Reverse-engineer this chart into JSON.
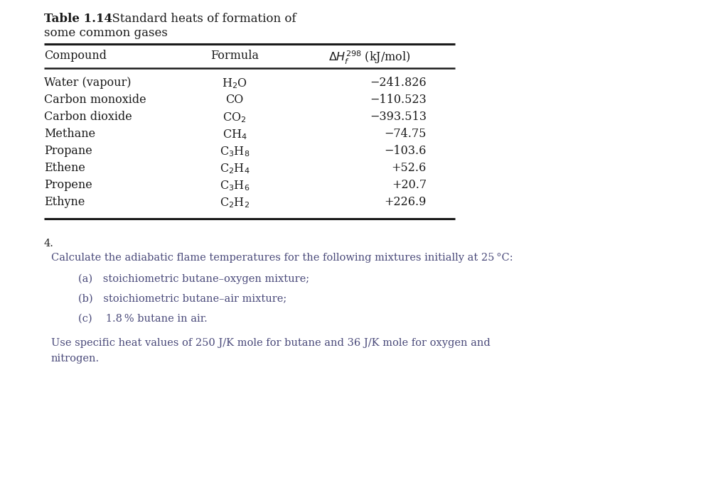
{
  "table_title_bold": "Table 1.14",
  "table_title_rest": "  Standard heats of formation of",
  "table_title_line2": "some common gases",
  "compounds": [
    "Water (vapour)",
    "Carbon monoxide",
    "Carbon dioxide",
    "Methane",
    "Propane",
    "Ethene",
    "Propene",
    "Ethyne"
  ],
  "formulas_latex": [
    "H$_2$O",
    "CO",
    "CO$_2$",
    "CH$_4$",
    "C$_3$H$_8$",
    "C$_2$H$_4$",
    "C$_3$H$_6$",
    "C$_2$H$_2$"
  ],
  "values": [
    "−241.826",
    "−110.523",
    "−393.513",
    "−74.75",
    "−103.6",
    "+52.6",
    "+20.7",
    "+226.9"
  ],
  "q_number": "4.",
  "q_line1": "Calculate the adiabatic flame temperatures for the following mixtures initially at 25 °C:",
  "q_sub_a": "(a) stoichiometric butane–oxygen mixture;",
  "q_sub_b": "(b) stoichiometric butane–air mixture;",
  "q_sub_c": "(c)  1.8 % butane in air.",
  "q_use1": "Use specific heat values of 250 J/K mole for butane and 36 J/K mole for oxygen and",
  "q_use2": "nitrogen.",
  "bg_color": "#ffffff",
  "text_black": "#1a1a1a",
  "text_blue": "#4a4a7a",
  "title_font": 12,
  "table_font": 11.5,
  "body_font": 10.5
}
